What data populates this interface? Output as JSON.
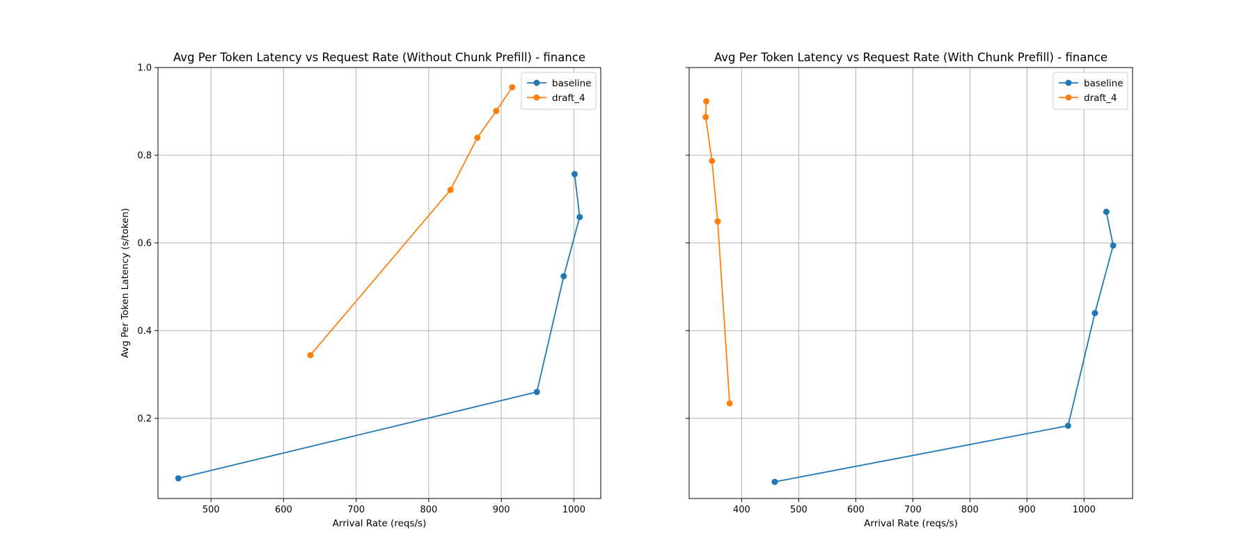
{
  "chart_data": [
    {
      "type": "line",
      "title": "Avg Per Token Latency vs Request Rate (Without Chunk Prefill) - finance",
      "xlabel": "Arrival Rate (reqs/s)",
      "ylabel": "Avg Per Token Latency (s/token)",
      "xlim": [
        427,
        1037
      ],
      "ylim": [
        0.017,
        1.0
      ],
      "xticks": [
        500,
        600,
        700,
        800,
        900,
        1000
      ],
      "xtick_labels": [
        "500",
        "600",
        "700",
        "800",
        "900",
        "1000"
      ],
      "yticks": [
        0.2,
        0.4,
        0.6,
        0.8,
        1.0
      ],
      "ytick_labels": [
        "0.2",
        "0.4",
        "0.6",
        "0.8",
        "1.0"
      ],
      "grid": true,
      "legend": "top-right",
      "series": [
        {
          "name": "baseline",
          "color": "#1f77b4",
          "x": [
            455,
            949,
            986,
            1008,
            1001
          ],
          "y": [
            0.063,
            0.26,
            0.524,
            0.659,
            0.757
          ]
        },
        {
          "name": "draft_4",
          "color": "#ff7f0e",
          "x": [
            637,
            830,
            867,
            893,
            915
          ],
          "y": [
            0.344,
            0.721,
            0.84,
            0.901,
            0.955
          ]
        }
      ]
    },
    {
      "type": "line",
      "title": "Avg Per Token Latency vs Request Rate (With Chunk Prefill) - finance",
      "xlabel": "Arrival Rate (reqs/s)",
      "ylabel": "",
      "xlim": [
        308,
        1085
      ],
      "ylim": [
        0.017,
        1.0
      ],
      "xticks": [
        400,
        500,
        600,
        700,
        800,
        900,
        1000
      ],
      "xtick_labels": [
        "400",
        "500",
        "600",
        "700",
        "800",
        "900",
        "1000"
      ],
      "yticks": [
        0.2,
        0.4,
        0.6,
        0.8,
        1.0
      ],
      "ytick_labels": [
        "",
        "",
        "",
        "",
        ""
      ],
      "grid": true,
      "legend": "top-right",
      "series": [
        {
          "name": "baseline",
          "color": "#1f77b4",
          "x": [
            458,
            972,
            1019,
            1051,
            1039
          ],
          "y": [
            0.055,
            0.183,
            0.44,
            0.594,
            0.671
          ]
        },
        {
          "name": "draft_4",
          "color": "#ff7f0e",
          "x": [
            379,
            358,
            348,
            337,
            338
          ],
          "y": [
            0.234,
            0.649,
            0.787,
            0.887,
            0.923
          ]
        }
      ]
    }
  ]
}
